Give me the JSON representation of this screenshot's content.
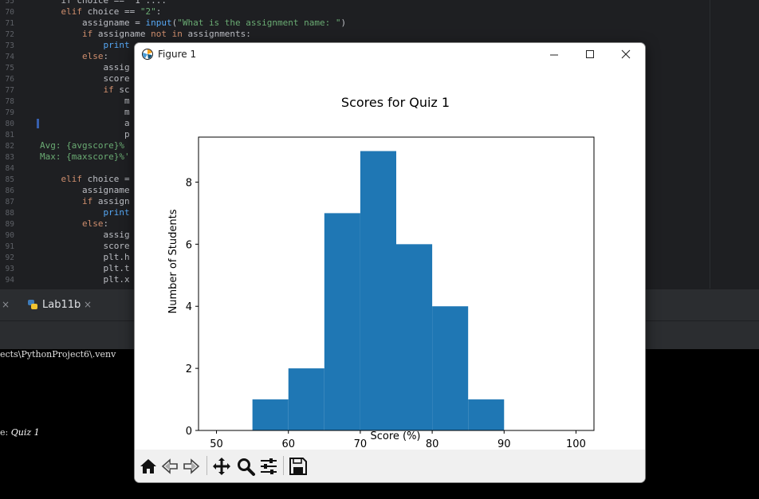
{
  "editor": {
    "lines": [
      {
        "n": "55",
        "segs": [
          {
            "t": "    if choice == \"1\":...",
            "c": ""
          }
        ]
      },
      {
        "n": "70",
        "segs": [
          {
            "t": "    elif ",
            "c": "kw"
          },
          {
            "t": "choice == ",
            "c": ""
          },
          {
            "t": "\"2\"",
            "c": "str"
          },
          {
            "t": ":",
            "c": ""
          }
        ]
      },
      {
        "n": "71",
        "segs": [
          {
            "t": "        assigname = ",
            "c": ""
          },
          {
            "t": "input",
            "c": "fn"
          },
          {
            "t": "(",
            "c": ""
          },
          {
            "t": "\"What is the assignment name: \"",
            "c": "str"
          },
          {
            "t": ")",
            "c": ""
          }
        ]
      },
      {
        "n": "72",
        "segs": [
          {
            "t": "        ",
            "c": ""
          },
          {
            "t": "if ",
            "c": "kw"
          },
          {
            "t": "assigname ",
            "c": ""
          },
          {
            "t": "not in ",
            "c": "kw"
          },
          {
            "t": "assignments:",
            "c": ""
          }
        ]
      },
      {
        "n": "73",
        "segs": [
          {
            "t": "            print",
            "c": "fn"
          }
        ]
      },
      {
        "n": "74",
        "segs": [
          {
            "t": "        ",
            "c": ""
          },
          {
            "t": "else",
            "c": "kw"
          },
          {
            "t": ":",
            "c": ""
          }
        ]
      },
      {
        "n": "75",
        "segs": [
          {
            "t": "            assig",
            "c": ""
          }
        ]
      },
      {
        "n": "76",
        "segs": [
          {
            "t": "            score",
            "c": ""
          }
        ]
      },
      {
        "n": "77",
        "segs": [
          {
            "t": "            ",
            "c": ""
          },
          {
            "t": "if ",
            "c": "kw"
          },
          {
            "t": "sc",
            "c": ""
          }
        ]
      },
      {
        "n": "78",
        "segs": [
          {
            "t": "                m",
            "c": ""
          }
        ]
      },
      {
        "n": "79",
        "segs": [
          {
            "t": "                m",
            "c": ""
          }
        ]
      },
      {
        "n": "80",
        "segs": [
          {
            "t": "                a",
            "c": ""
          }
        ]
      },
      {
        "n": "81",
        "segs": [
          {
            "t": "                p",
            "c": ""
          }
        ]
      },
      {
        "n": "82",
        "segs": [
          {
            "t": "Avg: {avgscore}% ",
            "c": "gr"
          }
        ]
      },
      {
        "n": "83",
        "segs": [
          {
            "t": "Max: {maxscore}%'",
            "c": "gr"
          }
        ]
      },
      {
        "n": "84",
        "segs": [
          {
            "t": "",
            "c": ""
          }
        ]
      },
      {
        "n": "85",
        "segs": [
          {
            "t": "    elif ",
            "c": "kw"
          },
          {
            "t": "choice =",
            "c": ""
          }
        ]
      },
      {
        "n": "86",
        "segs": [
          {
            "t": "        assigname",
            "c": ""
          }
        ]
      },
      {
        "n": "87",
        "segs": [
          {
            "t": "        ",
            "c": ""
          },
          {
            "t": "if ",
            "c": "kw"
          },
          {
            "t": "assign",
            "c": ""
          }
        ]
      },
      {
        "n": "88",
        "segs": [
          {
            "t": "            print",
            "c": "fn"
          }
        ]
      },
      {
        "n": "89",
        "segs": [
          {
            "t": "        ",
            "c": ""
          },
          {
            "t": "else",
            "c": "kw"
          },
          {
            "t": ":",
            "c": ""
          }
        ]
      },
      {
        "n": "90",
        "segs": [
          {
            "t": "            assig",
            "c": ""
          }
        ]
      },
      {
        "n": "91",
        "segs": [
          {
            "t": "            score",
            "c": ""
          }
        ]
      },
      {
        "n": "92",
        "segs": [
          {
            "t": "            plt.h",
            "c": ""
          }
        ]
      },
      {
        "n": "93",
        "segs": [
          {
            "t": "            plt.t",
            "c": ""
          }
        ]
      },
      {
        "n": "94",
        "segs": [
          {
            "t": "            plt.x",
            "c": ""
          }
        ]
      }
    ]
  },
  "tabs": {
    "close_glyph": "×",
    "active_tab": "Lab11b"
  },
  "terminal": {
    "path_line": "ects\\PythonProject6\\.venv",
    "prompt_prefix": "e: ",
    "input_value": "Quiz 1"
  },
  "figure_window": {
    "title": "Figure 1",
    "minimize": "—",
    "maximize": "☐",
    "close": "✕",
    "toolbar": {
      "items": [
        "home-icon",
        "back-icon",
        "forward-icon",
        "pan-icon",
        "zoom-icon",
        "configure-subplots-icon",
        "save-icon"
      ]
    }
  },
  "chart_data": {
    "type": "bar",
    "title": "Scores for Quiz 1",
    "xlabel": "Score (%)",
    "ylabel": "Number of Students",
    "xlim": [
      47.5,
      102.5
    ],
    "ylim": [
      0,
      9.45
    ],
    "xticks": [
      50,
      60,
      70,
      80,
      90,
      100
    ],
    "yticks": [
      0,
      2,
      4,
      6,
      8
    ],
    "bin_edges": [
      55,
      60,
      65,
      70,
      75,
      80,
      85,
      90
    ],
    "values": [
      1,
      2,
      7,
      9,
      6,
      4,
      1
    ],
    "color": "#1f77b4",
    "grid": false
  }
}
